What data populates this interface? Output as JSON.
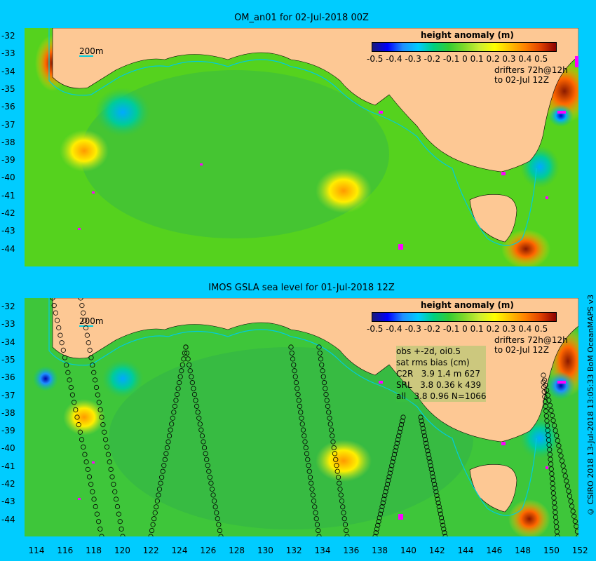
{
  "top_panel": {
    "title": "OM_an01 for 02-Jul-2018 00Z",
    "colorbar_title": "height anomaly (m)",
    "colorbar_ticks": "-0.5 -0.4 -0.3 -0.2 -0.1  0  0.1 0.2  0.3  0.4 0.5",
    "isobath_label": "200m",
    "drifters_line1": "drifters 72h@12h",
    "drifters_line2": "to 02-Jul 12Z"
  },
  "bottom_panel": {
    "title": "IMOS GSLA sea level  for 01-Jul-2018 12Z",
    "colorbar_title": "height anomaly (m)",
    "colorbar_ticks": "-0.5 -0.4 -0.3 -0.2 -0.1  0  0.1 0.2  0.3  0.4 0.5",
    "isobath_label": "200m",
    "drifters_line1": "drifters 72h@12h",
    "drifters_line2": "to 02-Jul 12Z",
    "stats": [
      "obs +-2d, oi0.5",
      "sat rms bias (cm)",
      "C2R   3.9 1.4 m 627",
      "SRL   3.8 0.36 k 439",
      "all   3.8 0.96 N=1066"
    ]
  },
  "y_ticks": [
    "-32",
    "-33",
    "-34",
    "-35",
    "-36",
    "-37",
    "-38",
    "-39",
    "-40",
    "-41",
    "-42",
    "-43",
    "-44"
  ],
  "x_ticks": [
    "114",
    "116",
    "118",
    "120",
    "122",
    "124",
    "126",
    "128",
    "130",
    "132",
    "134",
    "136",
    "138",
    "140",
    "142",
    "144",
    "146",
    "148",
    "150",
    "152"
  ],
  "credit": "© CSIRO 2018  13-Jul-2018 13:05:33 BoM OceanMAPS v3",
  "colors": {
    "background": "#00ccff",
    "land": "#fdc894",
    "ocean_base": "#55d21e",
    "drifters": "#ff00ff"
  }
}
